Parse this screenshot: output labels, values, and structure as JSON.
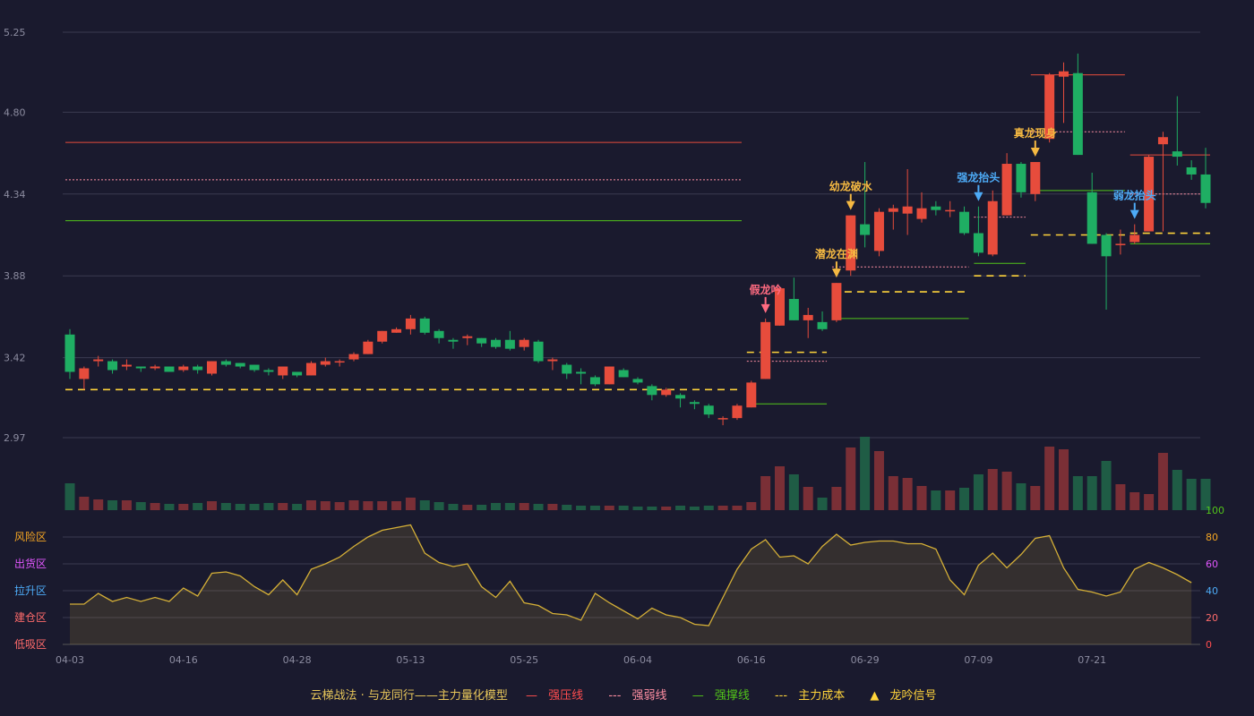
{
  "chart_data": {
    "type": "candlestick",
    "title": "",
    "price_axis": {
      "ticks": [
        "2.97",
        "3.42",
        "3.88",
        "4.34",
        "4.80",
        "5.25"
      ],
      "min": 2.97,
      "max": 5.25
    },
    "date_ticks": [
      {
        "label": "04-03",
        "i": 0
      },
      {
        "label": "04-16",
        "i": 8
      },
      {
        "label": "04-28",
        "i": 16
      },
      {
        "label": "05-13",
        "i": 24
      },
      {
        "label": "05-25",
        "i": 32
      },
      {
        "label": "06-04",
        "i": 40
      },
      {
        "label": "06-16",
        "i": 48
      },
      {
        "label": "06-29",
        "i": 56
      },
      {
        "label": "07-09",
        "i": 64
      },
      {
        "label": "07-21",
        "i": 72
      }
    ],
    "candles": [
      [
        3.55,
        3.34,
        3.58,
        3.3
      ],
      [
        3.3,
        3.36,
        3.37,
        3.24
      ],
      [
        3.4,
        3.41,
        3.43,
        3.37
      ],
      [
        3.4,
        3.35,
        3.41,
        3.33
      ],
      [
        3.37,
        3.38,
        3.41,
        3.35
      ],
      [
        3.37,
        3.36,
        3.37,
        3.34
      ],
      [
        3.36,
        3.37,
        3.38,
        3.35
      ],
      [
        3.37,
        3.34,
        3.37,
        3.34
      ],
      [
        3.35,
        3.37,
        3.38,
        3.34
      ],
      [
        3.37,
        3.35,
        3.38,
        3.33
      ],
      [
        3.33,
        3.4,
        3.4,
        3.32
      ],
      [
        3.4,
        3.38,
        3.41,
        3.37
      ],
      [
        3.39,
        3.37,
        3.39,
        3.36
      ],
      [
        3.38,
        3.35,
        3.38,
        3.34
      ],
      [
        3.35,
        3.34,
        3.36,
        3.32
      ],
      [
        3.32,
        3.37,
        3.37,
        3.3
      ],
      [
        3.34,
        3.32,
        3.34,
        3.31
      ],
      [
        3.32,
        3.39,
        3.4,
        3.32
      ],
      [
        3.38,
        3.4,
        3.42,
        3.37
      ],
      [
        3.4,
        3.4,
        3.41,
        3.37
      ],
      [
        3.41,
        3.44,
        3.45,
        3.4
      ],
      [
        3.44,
        3.51,
        3.52,
        3.44
      ],
      [
        3.51,
        3.57,
        3.57,
        3.5
      ],
      [
        3.56,
        3.58,
        3.59,
        3.56
      ],
      [
        3.58,
        3.64,
        3.66,
        3.55
      ],
      [
        3.64,
        3.56,
        3.65,
        3.55
      ],
      [
        3.57,
        3.53,
        3.58,
        3.5
      ],
      [
        3.52,
        3.51,
        3.53,
        3.47
      ],
      [
        3.53,
        3.54,
        3.55,
        3.49
      ],
      [
        3.53,
        3.5,
        3.53,
        3.48
      ],
      [
        3.52,
        3.48,
        3.53,
        3.47
      ],
      [
        3.52,
        3.47,
        3.57,
        3.46
      ],
      [
        3.48,
        3.52,
        3.53,
        3.46
      ],
      [
        3.51,
        3.4,
        3.52,
        3.39
      ],
      [
        3.4,
        3.41,
        3.42,
        3.35
      ],
      [
        3.38,
        3.33,
        3.39,
        3.3
      ],
      [
        3.34,
        3.33,
        3.36,
        3.27
      ],
      [
        3.31,
        3.27,
        3.32,
        3.26
      ],
      [
        3.27,
        3.37,
        3.37,
        3.27
      ],
      [
        3.35,
        3.31,
        3.36,
        3.31
      ],
      [
        3.3,
        3.28,
        3.31,
        3.27
      ],
      [
        3.26,
        3.21,
        3.27,
        3.18
      ],
      [
        3.21,
        3.24,
        3.25,
        3.2
      ],
      [
        3.21,
        3.19,
        3.22,
        3.14
      ],
      [
        3.17,
        3.16,
        3.18,
        3.13
      ],
      [
        3.15,
        3.1,
        3.16,
        3.08
      ],
      [
        3.08,
        3.08,
        3.09,
        3.04
      ],
      [
        3.08,
        3.15,
        3.16,
        3.07
      ],
      [
        3.14,
        3.28,
        3.29,
        3.14
      ],
      [
        3.3,
        3.62,
        3.64,
        3.3
      ],
      [
        3.6,
        3.81,
        3.82,
        3.6
      ],
      [
        3.75,
        3.63,
        3.87,
        3.63
      ],
      [
        3.63,
        3.66,
        3.7,
        3.53
      ],
      [
        3.62,
        3.58,
        3.68,
        3.57
      ],
      [
        3.63,
        3.84,
        3.84,
        3.62
      ],
      [
        3.91,
        4.22,
        4.22,
        3.88
      ],
      [
        4.17,
        4.11,
        4.52,
        4.04
      ],
      [
        4.02,
        4.24,
        4.26,
        3.99
      ],
      [
        4.24,
        4.26,
        4.28,
        4.14
      ],
      [
        4.23,
        4.27,
        4.48,
        4.11
      ],
      [
        4.2,
        4.26,
        4.35,
        4.18
      ],
      [
        4.27,
        4.25,
        4.3,
        4.22
      ],
      [
        4.25,
        4.25,
        4.3,
        4.21
      ],
      [
        4.24,
        4.12,
        4.27,
        4.11
      ],
      [
        4.12,
        4.01,
        4.27,
        3.99
      ],
      [
        4.0,
        4.3,
        4.36,
        3.99
      ],
      [
        4.22,
        4.51,
        4.57,
        4.22
      ],
      [
        4.51,
        4.35,
        4.52,
        4.32
      ],
      [
        4.34,
        4.52,
        4.52,
        4.3
      ],
      [
        4.65,
        5.01,
        5.02,
        4.63
      ],
      [
        5.0,
        5.03,
        5.08,
        4.74
      ],
      [
        5.02,
        4.56,
        5.13,
        4.56
      ],
      [
        4.35,
        4.06,
        4.46,
        4.06
      ],
      [
        4.11,
        3.99,
        4.12,
        3.69
      ],
      [
        4.06,
        4.06,
        4.14,
        4.0
      ],
      [
        4.07,
        4.11,
        4.17,
        4.06
      ],
      [
        4.13,
        4.55,
        4.56,
        4.13
      ],
      [
        4.62,
        4.66,
        4.69,
        4.13
      ],
      [
        4.58,
        4.55,
        4.89,
        4.5
      ],
      [
        4.49,
        4.45,
        4.53,
        4.42
      ],
      [
        4.45,
        4.29,
        4.6,
        4.26
      ]
    ],
    "volume": [
      30,
      15,
      12,
      11,
      11,
      9,
      8,
      7,
      7,
      8,
      10,
      8,
      7,
      7,
      8,
      8,
      7,
      11,
      10,
      9,
      11,
      10,
      10,
      10,
      14,
      11,
      9,
      7,
      6,
      6,
      8,
      8,
      8,
      7,
      7,
      6,
      5,
      5,
      5,
      5,
      4,
      4,
      4,
      5,
      4,
      5,
      5,
      5,
      9,
      38,
      49,
      40,
      26,
      14,
      26,
      70,
      82,
      66,
      38,
      36,
      27,
      22,
      22,
      25,
      40,
      46,
      43,
      30,
      27,
      71,
      68,
      38,
      38,
      55,
      29,
      20,
      18,
      64,
      45,
      35,
      35
    ],
    "oscillator": {
      "y_ticks": [
        "0",
        "20",
        "40",
        "60",
        "80",
        "100"
      ],
      "zones": [
        "风险区",
        "出货区",
        "拉升区",
        "建仓区",
        "低吸区"
      ],
      "values": [
        30,
        30,
        38,
        32,
        35,
        32,
        35,
        32,
        42,
        36,
        53,
        54,
        51,
        43,
        37,
        48,
        37,
        56,
        60,
        65,
        73,
        80,
        85,
        87,
        89,
        68,
        61,
        58,
        60,
        43,
        35,
        47,
        31,
        29,
        23,
        22,
        18,
        38,
        31,
        25,
        19,
        27,
        22,
        20,
        15,
        14,
        35,
        56,
        71,
        78,
        65,
        66,
        60,
        73,
        82,
        74,
        76,
        77,
        77,
        75,
        75,
        71,
        48,
        37,
        59,
        68,
        57,
        67,
        79,
        81,
        57,
        41,
        39,
        36,
        39,
        56,
        61,
        57,
        52,
        46
      ]
    },
    "lines": [
      {
        "type": "red",
        "y": 4.63,
        "from": 0,
        "to": 47
      },
      {
        "type": "pink",
        "y": 4.42,
        "from": 0,
        "to": 47
      },
      {
        "type": "green",
        "y": 4.19,
        "from": 0,
        "to": 47
      },
      {
        "type": "yellow",
        "y": 3.24,
        "from": 0,
        "to": 47
      },
      {
        "type": "green",
        "y": 3.16,
        "from": 48,
        "to": 53
      },
      {
        "type": "pink",
        "y": 3.4,
        "from": 48,
        "to": 53
      },
      {
        "type": "yellow",
        "y": 3.45,
        "from": 48,
        "to": 53
      },
      {
        "type": "pink",
        "y": 3.93,
        "from": 54,
        "to": 63
      },
      {
        "type": "yellow",
        "y": 3.79,
        "from": 54,
        "to": 63
      },
      {
        "type": "green",
        "y": 3.64,
        "from": 54,
        "to": 63
      },
      {
        "type": "green",
        "y": 3.95,
        "from": 64,
        "to": 67
      },
      {
        "type": "yellow",
        "y": 3.88,
        "from": 64,
        "to": 67
      },
      {
        "type": "pink",
        "y": 4.21,
        "from": 64,
        "to": 67
      },
      {
        "type": "red",
        "y": 5.01,
        "from": 68,
        "to": 74
      },
      {
        "type": "pink",
        "y": 4.69,
        "from": 68,
        "to": 74
      },
      {
        "type": "green",
        "y": 4.36,
        "from": 68,
        "to": 74
      },
      {
        "type": "yellow",
        "y": 4.11,
        "from": 68,
        "to": 74
      },
      {
        "type": "red",
        "y": 4.56,
        "from": 75,
        "to": 80
      },
      {
        "type": "pink",
        "y": 4.34,
        "from": 75,
        "to": 80
      },
      {
        "type": "yellow",
        "y": 4.12,
        "from": 75,
        "to": 80
      },
      {
        "type": "green",
        "y": 4.06,
        "from": 75,
        "to": 80
      }
    ],
    "signals": [
      {
        "i": 49,
        "label": "假龙吟",
        "color": "#ff6b81"
      },
      {
        "i": 54,
        "label": "潜龙在渊",
        "color": "#f5b942"
      },
      {
        "i": 55,
        "label": "幼龙破水",
        "color": "#f5b942"
      },
      {
        "i": 64,
        "label": "强龙抬头",
        "color": "#4dabf7"
      },
      {
        "i": 68,
        "label": "真龙现身",
        "color": "#f5b942"
      },
      {
        "i": 75,
        "label": "弱龙抬头",
        "color": "#4dabf7"
      }
    ]
  },
  "legend": {
    "title": "云梯战法 · 与龙同行——主力量化模型",
    "items": [
      "强压线",
      "强弱线",
      "强撑线",
      "主力成本",
      "龙吟信号"
    ]
  },
  "colors": {
    "up": "#e74c3c",
    "down": "#1fae63",
    "bg": "#1a1a2e"
  }
}
